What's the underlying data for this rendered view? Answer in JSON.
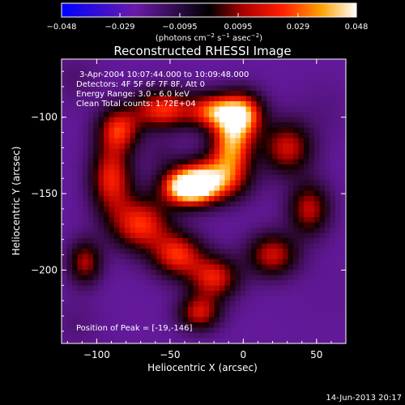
{
  "chart_data": {
    "type": "heatmap",
    "title": "Reconstructed RHESSI Image",
    "xlabel": "Heliocentric X (arcsec)",
    "ylabel": "Heliocentric Y (arcsec)",
    "xlim": [
      -124,
      70
    ],
    "ylim": [
      -248,
      -62
    ],
    "x_ticks": [
      -100,
      -50,
      0,
      50
    ],
    "x_tick_labels": [
      "−100",
      "−50",
      "0",
      "50"
    ],
    "y_ticks": [
      -100,
      -150,
      -200
    ],
    "y_tick_labels": [
      "−100",
      "−150",
      "−200"
    ],
    "colorbar": {
      "range": [
        -0.048,
        0.048
      ],
      "ticks": [
        -0.048,
        -0.029,
        -0.0095,
        0.0095,
        0.029,
        0.048
      ],
      "tick_labels": [
        "−0.048",
        "−0.029",
        "−0.0095",
        "0.0095",
        "0.029",
        "0.048"
      ],
      "units_parts": [
        "(photons cm",
        "−2",
        " s",
        "−1",
        " asec",
        "−2",
        ")"
      ]
    },
    "annotations": [
      "3-Apr-2004 10:07:44.000 to 10:09:48.000",
      "Detectors: 4F 5F 6F 7F 8F, Att 0",
      "Energy Range: 3.0 - 6.0 keV",
      "Clean     Total counts: 1.72E+04"
    ],
    "peak_label": "Position of Peak = [-19,-146]",
    "peak": {
      "x": -19,
      "y": -146
    },
    "sources": [
      {
        "x": -38,
        "y": -146,
        "amp": 0.047,
        "sx": 12,
        "sy": 8
      },
      {
        "x": -22,
        "y": -141,
        "amp": 0.03,
        "sx": 16,
        "sy": 10
      },
      {
        "x": -8,
        "y": -118,
        "amp": 0.032,
        "sx": 10,
        "sy": 14
      },
      {
        "x": 0,
        "y": -98,
        "amp": 0.028,
        "sx": 10,
        "sy": 10
      },
      {
        "x": -20,
        "y": -96,
        "amp": 0.026,
        "sx": 12,
        "sy": 8
      },
      {
        "x": -55,
        "y": -95,
        "amp": 0.024,
        "sx": 14,
        "sy": 9
      },
      {
        "x": -85,
        "y": -108,
        "amp": 0.02,
        "sx": 10,
        "sy": 10
      },
      {
        "x": -90,
        "y": -140,
        "amp": 0.022,
        "sx": 10,
        "sy": 16
      },
      {
        "x": -70,
        "y": -170,
        "amp": 0.024,
        "sx": 14,
        "sy": 12
      },
      {
        "x": -45,
        "y": -190,
        "amp": 0.022,
        "sx": 12,
        "sy": 10
      },
      {
        "x": -20,
        "y": -205,
        "amp": 0.02,
        "sx": 12,
        "sy": 10
      },
      {
        "x": -30,
        "y": -228,
        "amp": 0.016,
        "sx": 10,
        "sy": 8
      },
      {
        "x": 20,
        "y": -190,
        "amp": 0.016,
        "sx": 12,
        "sy": 10
      },
      {
        "x": 30,
        "y": -120,
        "amp": 0.016,
        "sx": 12,
        "sy": 12
      },
      {
        "x": 45,
        "y": -160,
        "amp": 0.014,
        "sx": 10,
        "sy": 12
      },
      {
        "x": -108,
        "y": -195,
        "amp": 0.012,
        "sx": 8,
        "sy": 10
      },
      {
        "x": -55,
        "y": -125,
        "amp": -0.01,
        "sx": 9,
        "sy": 8
      },
      {
        "x": 60,
        "y": -215,
        "amp": -0.02,
        "sx": 18,
        "sy": 18
      },
      {
        "x": 55,
        "y": -95,
        "amp": -0.016,
        "sx": 14,
        "sy": 14
      },
      {
        "x": -115,
        "y": -235,
        "amp": -0.014,
        "sx": 12,
        "sy": 12
      },
      {
        "x": -115,
        "y": -75,
        "amp": -0.012,
        "sx": 12,
        "sy": 12
      }
    ],
    "colors": {
      "negative_low": "#0000ff",
      "negative_mid": "#6a1ba8",
      "zero": "#000000",
      "positive_mid": "#d82000",
      "positive_high": "#ffa000",
      "positive_max": "#ffffff"
    }
  },
  "footer": {
    "timestamp": "14-Jun-2013 20:17"
  }
}
